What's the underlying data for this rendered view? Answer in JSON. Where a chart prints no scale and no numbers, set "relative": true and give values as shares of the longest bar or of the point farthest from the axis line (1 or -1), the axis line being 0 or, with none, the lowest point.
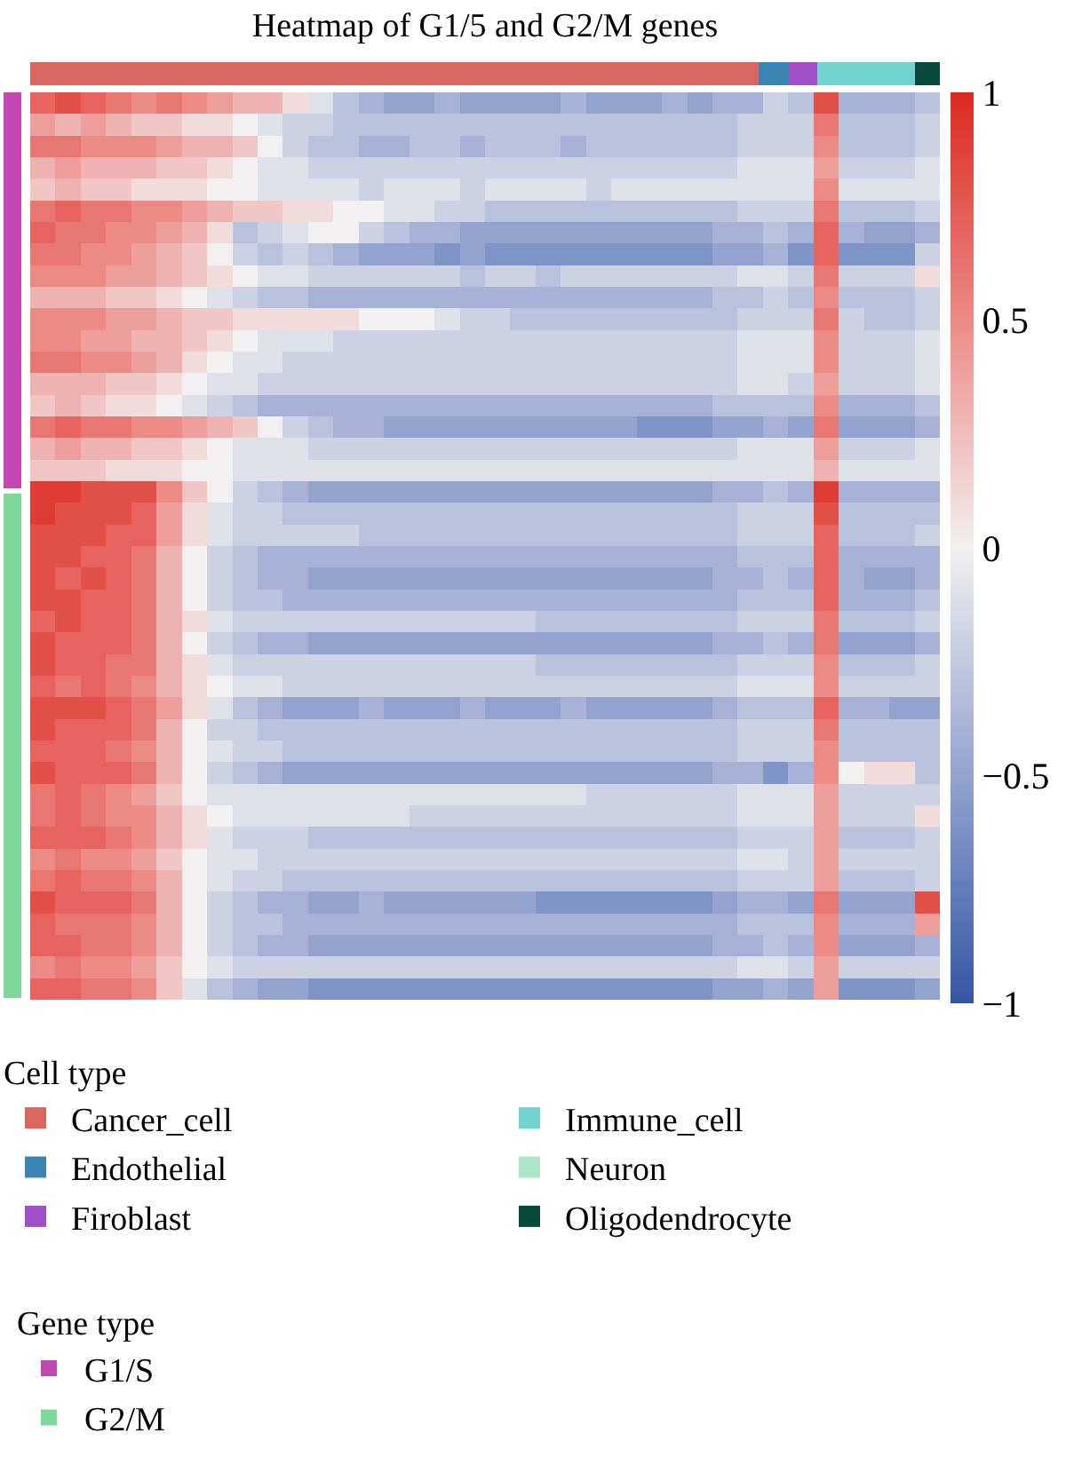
{
  "chart_data": [
    {
      "type": "bar",
      "title": "Heatmap of G1/5 and G2/M genes",
      "orientation": "horizontal",
      "stacked": true,
      "relative": true,
      "categories": [
        null
      ],
      "legend_title": "Cell type",
      "legend": "bottom left",
      "series": [
        {
          "name": "Cancer_cell",
          "color": "#d9675f",
          "values": [
            0.8
          ]
        },
        {
          "name": "Endothelial",
          "color": "#3a85b3",
          "values": [
            0.033
          ]
        },
        {
          "name": "Firoblast",
          "color": "#a050c6",
          "values": [
            0.033
          ]
        },
        {
          "name": "Immune_cell",
          "color": "#72d2cf",
          "values": [
            0.107
          ]
        },
        {
          "name": "Neuron",
          "color": "#aae5c6",
          "values": [
            null
          ]
        },
        {
          "name": "Oligodendrocyte",
          "color": "#07493a",
          "values": [
            0.027
          ]
        }
      ]
    },
    {
      "type": "bar",
      "stacked": true,
      "relative": true,
      "categories": [
        null
      ],
      "legend_title": "Gene type",
      "legend": "bottom right",
      "series": [
        {
          "name": "G2/M",
          "color": "#7dd89a",
          "values": [
            0.56
          ]
        },
        {
          "name": "G1/S",
          "color": "#c547b3",
          "values": [
            0.44
          ]
        }
      ]
    },
    {
      "type": "heatmap",
      "categories": [
        null,
        null,
        null,
        null,
        null,
        null,
        null,
        null,
        null,
        null,
        null,
        null,
        null,
        null,
        null,
        null,
        null,
        null,
        null,
        null,
        null,
        null,
        null,
        null,
        null,
        null,
        null,
        null,
        null,
        null,
        null,
        null,
        null,
        null,
        null,
        null
      ],
      "y_categories": [
        null,
        null,
        null,
        null,
        null,
        null,
        null,
        null,
        null,
        null,
        null,
        null,
        null,
        null,
        null,
        null,
        null,
        null,
        null,
        null,
        null,
        null,
        null,
        null,
        null,
        null,
        null,
        null,
        null,
        null,
        null,
        null,
        null,
        null,
        null,
        null,
        null,
        null,
        null,
        null,
        null,
        null
      ],
      "clim": [
        -1,
        1
      ],
      "cticks": [
        {
          "value": -1,
          "label": "−1"
        },
        {
          "value": -0.5,
          "label": "−0.5"
        },
        0,
        0.5,
        1
      ],
      "cells": [
        [
          0.7,
          0.8,
          0.7,
          0.6,
          0.5,
          0.6,
          0.5,
          0.4,
          0.3,
          0.3,
          0.1,
          -0.1,
          -0.3,
          -0.4,
          -0.5,
          -0.5,
          -0.4,
          -0.5,
          -0.5,
          -0.5,
          -0.5,
          -0.4,
          -0.5,
          -0.5,
          -0.5,
          -0.4,
          -0.5,
          -0.4,
          -0.4,
          -0.2,
          -0.3,
          0.8,
          -0.4,
          -0.4,
          -0.4,
          -0.3
        ],
        [
          0.4,
          0.3,
          0.4,
          0.3,
          0.2,
          0.2,
          0.1,
          0.1,
          0.0,
          -0.1,
          -0.2,
          -0.2,
          -0.3,
          -0.3,
          -0.3,
          -0.3,
          -0.3,
          -0.3,
          -0.3,
          -0.3,
          -0.3,
          -0.3,
          -0.3,
          -0.3,
          -0.3,
          -0.3,
          -0.3,
          -0.3,
          -0.2,
          -0.2,
          -0.2,
          0.6,
          -0.3,
          -0.3,
          -0.3,
          -0.2
        ],
        [
          0.6,
          0.6,
          0.5,
          0.5,
          0.5,
          0.4,
          0.3,
          0.3,
          0.2,
          0.0,
          -0.2,
          -0.3,
          -0.3,
          -0.4,
          -0.4,
          -0.3,
          -0.3,
          -0.4,
          -0.3,
          -0.3,
          -0.3,
          -0.4,
          -0.3,
          -0.3,
          -0.3,
          -0.3,
          -0.3,
          -0.3,
          -0.2,
          -0.2,
          -0.2,
          0.5,
          -0.3,
          -0.3,
          -0.3,
          -0.2
        ],
        [
          0.3,
          0.4,
          0.3,
          0.3,
          0.3,
          0.2,
          0.2,
          0.1,
          0.0,
          -0.1,
          -0.1,
          -0.2,
          -0.2,
          -0.2,
          -0.2,
          -0.2,
          -0.2,
          -0.2,
          -0.2,
          -0.2,
          -0.2,
          -0.2,
          -0.2,
          -0.2,
          -0.2,
          -0.2,
          -0.2,
          -0.2,
          -0.1,
          -0.1,
          -0.1,
          0.4,
          -0.2,
          -0.2,
          -0.2,
          -0.1
        ],
        [
          0.2,
          0.3,
          0.2,
          0.2,
          0.1,
          0.1,
          0.1,
          0.0,
          0.0,
          -0.1,
          -0.1,
          -0.1,
          -0.1,
          -0.2,
          -0.1,
          -0.1,
          -0.1,
          -0.2,
          -0.1,
          -0.1,
          -0.1,
          -0.1,
          -0.2,
          -0.1,
          -0.1,
          -0.1,
          -0.1,
          -0.1,
          -0.1,
          -0.1,
          -0.1,
          0.5,
          -0.1,
          -0.1,
          -0.1,
          -0.1
        ],
        [
          0.6,
          0.7,
          0.6,
          0.6,
          0.5,
          0.5,
          0.4,
          0.3,
          0.2,
          0.2,
          0.1,
          0.1,
          0.0,
          0.0,
          -0.1,
          -0.1,
          -0.2,
          -0.2,
          -0.3,
          -0.3,
          -0.3,
          -0.3,
          -0.3,
          -0.3,
          -0.3,
          -0.3,
          -0.3,
          -0.3,
          -0.2,
          -0.2,
          -0.2,
          0.6,
          -0.3,
          -0.3,
          -0.3,
          -0.2
        ],
        [
          0.7,
          0.6,
          0.6,
          0.5,
          0.5,
          0.4,
          0.3,
          0.1,
          -0.3,
          -0.2,
          -0.1,
          0.0,
          0.0,
          -0.2,
          -0.3,
          -0.4,
          -0.4,
          -0.5,
          -0.5,
          -0.5,
          -0.5,
          -0.5,
          -0.5,
          -0.5,
          -0.5,
          -0.5,
          -0.5,
          -0.4,
          -0.4,
          -0.3,
          -0.4,
          0.7,
          -0.4,
          -0.5,
          -0.5,
          -0.4
        ],
        [
          0.6,
          0.6,
          0.5,
          0.5,
          0.4,
          0.3,
          0.2,
          0.0,
          -0.2,
          -0.3,
          -0.2,
          -0.3,
          -0.4,
          -0.5,
          -0.5,
          -0.5,
          -0.6,
          -0.5,
          -0.6,
          -0.6,
          -0.6,
          -0.6,
          -0.6,
          -0.6,
          -0.6,
          -0.6,
          -0.6,
          -0.5,
          -0.5,
          -0.4,
          -0.6,
          0.7,
          -0.6,
          -0.6,
          -0.6,
          -0.2
        ],
        [
          0.5,
          0.5,
          0.5,
          0.4,
          0.4,
          0.3,
          0.2,
          0.1,
          0.0,
          -0.1,
          -0.1,
          -0.2,
          -0.2,
          -0.2,
          -0.2,
          -0.2,
          -0.2,
          -0.3,
          -0.2,
          -0.2,
          -0.3,
          -0.2,
          -0.2,
          -0.2,
          -0.2,
          -0.2,
          -0.2,
          -0.2,
          -0.1,
          -0.1,
          -0.2,
          0.6,
          -0.2,
          -0.2,
          -0.2,
          0.1
        ],
        [
          0.3,
          0.3,
          0.3,
          0.2,
          0.2,
          0.1,
          0.0,
          -0.1,
          -0.2,
          -0.3,
          -0.3,
          -0.4,
          -0.4,
          -0.4,
          -0.4,
          -0.4,
          -0.4,
          -0.4,
          -0.4,
          -0.4,
          -0.4,
          -0.4,
          -0.4,
          -0.4,
          -0.4,
          -0.4,
          -0.4,
          -0.3,
          -0.3,
          -0.2,
          -0.3,
          0.5,
          -0.3,
          -0.3,
          -0.3,
          -0.2
        ],
        [
          0.5,
          0.5,
          0.5,
          0.4,
          0.4,
          0.3,
          0.2,
          0.2,
          0.1,
          0.1,
          0.1,
          0.1,
          0.1,
          0.0,
          0.0,
          0.0,
          -0.1,
          -0.2,
          -0.2,
          -0.3,
          -0.3,
          -0.3,
          -0.3,
          -0.3,
          -0.3,
          -0.3,
          -0.3,
          -0.3,
          -0.2,
          -0.2,
          -0.2,
          0.6,
          -0.2,
          -0.3,
          -0.3,
          -0.2
        ],
        [
          0.5,
          0.5,
          0.4,
          0.4,
          0.3,
          0.3,
          0.2,
          0.1,
          0.0,
          -0.1,
          -0.1,
          -0.1,
          -0.2,
          -0.2,
          -0.2,
          -0.2,
          -0.2,
          -0.2,
          -0.2,
          -0.2,
          -0.2,
          -0.2,
          -0.2,
          -0.2,
          -0.2,
          -0.2,
          -0.2,
          -0.2,
          -0.1,
          -0.1,
          -0.1,
          0.5,
          -0.2,
          -0.2,
          -0.2,
          -0.1
        ],
        [
          0.6,
          0.6,
          0.5,
          0.5,
          0.4,
          0.3,
          0.1,
          0.0,
          -0.1,
          -0.1,
          -0.2,
          -0.2,
          -0.2,
          -0.2,
          -0.2,
          -0.2,
          -0.2,
          -0.2,
          -0.2,
          -0.2,
          -0.2,
          -0.2,
          -0.2,
          -0.2,
          -0.2,
          -0.2,
          -0.2,
          -0.2,
          -0.1,
          -0.1,
          -0.1,
          0.5,
          -0.2,
          -0.2,
          -0.2,
          -0.1
        ],
        [
          0.3,
          0.3,
          0.3,
          0.2,
          0.2,
          0.1,
          0.0,
          -0.1,
          -0.1,
          -0.2,
          -0.2,
          -0.2,
          -0.2,
          -0.2,
          -0.2,
          -0.2,
          -0.2,
          -0.2,
          -0.2,
          -0.2,
          -0.2,
          -0.2,
          -0.2,
          -0.2,
          -0.2,
          -0.2,
          -0.2,
          -0.2,
          -0.1,
          -0.1,
          -0.2,
          0.4,
          -0.2,
          -0.2,
          -0.2,
          -0.1
        ],
        [
          0.2,
          0.3,
          0.2,
          0.1,
          0.1,
          0.0,
          -0.1,
          -0.2,
          -0.3,
          -0.4,
          -0.4,
          -0.4,
          -0.4,
          -0.4,
          -0.4,
          -0.4,
          -0.4,
          -0.4,
          -0.4,
          -0.4,
          -0.4,
          -0.4,
          -0.4,
          -0.4,
          -0.4,
          -0.4,
          -0.4,
          -0.3,
          -0.3,
          -0.3,
          -0.3,
          0.5,
          -0.4,
          -0.4,
          -0.4,
          -0.3
        ],
        [
          0.6,
          0.7,
          0.6,
          0.6,
          0.5,
          0.5,
          0.4,
          0.3,
          0.2,
          0.0,
          -0.2,
          -0.3,
          -0.4,
          -0.4,
          -0.5,
          -0.5,
          -0.5,
          -0.5,
          -0.5,
          -0.5,
          -0.5,
          -0.5,
          -0.5,
          -0.5,
          -0.6,
          -0.6,
          -0.6,
          -0.5,
          -0.5,
          -0.4,
          -0.5,
          0.6,
          -0.5,
          -0.5,
          -0.5,
          -0.4
        ],
        [
          0.3,
          0.4,
          0.3,
          0.3,
          0.2,
          0.2,
          0.1,
          0.0,
          -0.1,
          -0.1,
          -0.1,
          -0.2,
          -0.2,
          -0.2,
          -0.2,
          -0.2,
          -0.2,
          -0.2,
          -0.2,
          -0.2,
          -0.2,
          -0.2,
          -0.2,
          -0.2,
          -0.2,
          -0.2,
          -0.2,
          -0.2,
          -0.1,
          -0.1,
          -0.1,
          0.4,
          -0.2,
          -0.2,
          -0.2,
          -0.1
        ],
        [
          0.2,
          0.2,
          0.2,
          0.1,
          0.1,
          0.1,
          0.0,
          0.0,
          -0.1,
          -0.1,
          -0.1,
          -0.1,
          -0.1,
          -0.1,
          -0.1,
          -0.1,
          -0.1,
          -0.1,
          -0.1,
          -0.1,
          -0.1,
          -0.1,
          -0.1,
          -0.1,
          -0.1,
          -0.1,
          -0.1,
          -0.1,
          -0.1,
          -0.1,
          -0.1,
          0.3,
          -0.1,
          -0.1,
          -0.1,
          -0.1
        ],
        [
          0.9,
          0.9,
          0.8,
          0.8,
          0.8,
          0.5,
          0.2,
          0.0,
          -0.2,
          -0.3,
          -0.4,
          -0.5,
          -0.5,
          -0.5,
          -0.5,
          -0.5,
          -0.5,
          -0.5,
          -0.5,
          -0.5,
          -0.5,
          -0.5,
          -0.5,
          -0.5,
          -0.5,
          -0.5,
          -0.5,
          -0.4,
          -0.4,
          -0.3,
          -0.4,
          0.9,
          -0.4,
          -0.4,
          -0.4,
          -0.4
        ],
        [
          0.9,
          0.8,
          0.8,
          0.8,
          0.7,
          0.4,
          0.1,
          -0.1,
          -0.2,
          -0.2,
          -0.3,
          -0.3,
          -0.3,
          -0.3,
          -0.3,
          -0.3,
          -0.3,
          -0.3,
          -0.3,
          -0.3,
          -0.3,
          -0.3,
          -0.3,
          -0.3,
          -0.3,
          -0.3,
          -0.3,
          -0.3,
          -0.2,
          -0.2,
          -0.2,
          0.8,
          -0.3,
          -0.3,
          -0.3,
          -0.3
        ],
        [
          0.8,
          0.8,
          0.8,
          0.7,
          0.7,
          0.4,
          0.1,
          -0.1,
          -0.2,
          -0.2,
          -0.2,
          -0.2,
          -0.2,
          -0.3,
          -0.3,
          -0.3,
          -0.3,
          -0.3,
          -0.3,
          -0.3,
          -0.3,
          -0.3,
          -0.3,
          -0.3,
          -0.3,
          -0.3,
          -0.3,
          -0.3,
          -0.2,
          -0.2,
          -0.2,
          0.7,
          -0.3,
          -0.3,
          -0.3,
          -0.2
        ],
        [
          0.8,
          0.8,
          0.7,
          0.7,
          0.6,
          0.3,
          0.0,
          -0.2,
          -0.3,
          -0.4,
          -0.4,
          -0.4,
          -0.4,
          -0.4,
          -0.4,
          -0.4,
          -0.4,
          -0.4,
          -0.4,
          -0.4,
          -0.4,
          -0.4,
          -0.4,
          -0.4,
          -0.4,
          -0.4,
          -0.4,
          -0.4,
          -0.3,
          -0.3,
          -0.3,
          0.7,
          -0.4,
          -0.4,
          -0.4,
          -0.4
        ],
        [
          0.8,
          0.7,
          0.8,
          0.7,
          0.6,
          0.3,
          0.0,
          -0.2,
          -0.3,
          -0.4,
          -0.4,
          -0.5,
          -0.5,
          -0.5,
          -0.5,
          -0.5,
          -0.5,
          -0.5,
          -0.5,
          -0.5,
          -0.5,
          -0.5,
          -0.5,
          -0.5,
          -0.5,
          -0.5,
          -0.5,
          -0.4,
          -0.4,
          -0.3,
          -0.4,
          0.7,
          -0.4,
          -0.5,
          -0.5,
          -0.4
        ],
        [
          0.8,
          0.8,
          0.7,
          0.7,
          0.6,
          0.3,
          0.0,
          -0.2,
          -0.3,
          -0.3,
          -0.4,
          -0.4,
          -0.4,
          -0.4,
          -0.4,
          -0.4,
          -0.4,
          -0.4,
          -0.4,
          -0.4,
          -0.4,
          -0.4,
          -0.4,
          -0.4,
          -0.4,
          -0.4,
          -0.4,
          -0.4,
          -0.3,
          -0.3,
          -0.3,
          0.7,
          -0.4,
          -0.4,
          -0.4,
          -0.3
        ],
        [
          0.7,
          0.8,
          0.7,
          0.7,
          0.6,
          0.3,
          0.1,
          -0.1,
          -0.2,
          -0.2,
          -0.2,
          -0.2,
          -0.2,
          -0.2,
          -0.2,
          -0.2,
          -0.2,
          -0.2,
          -0.2,
          -0.2,
          -0.3,
          -0.3,
          -0.3,
          -0.3,
          -0.3,
          -0.3,
          -0.3,
          -0.3,
          -0.2,
          -0.2,
          -0.2,
          0.6,
          -0.3,
          -0.3,
          -0.3,
          -0.2
        ],
        [
          0.8,
          0.7,
          0.7,
          0.7,
          0.6,
          0.3,
          0.0,
          -0.2,
          -0.3,
          -0.4,
          -0.4,
          -0.5,
          -0.5,
          -0.5,
          -0.5,
          -0.5,
          -0.5,
          -0.5,
          -0.5,
          -0.5,
          -0.5,
          -0.5,
          -0.5,
          -0.5,
          -0.5,
          -0.5,
          -0.5,
          -0.4,
          -0.4,
          -0.3,
          -0.4,
          0.6,
          -0.5,
          -0.5,
          -0.5,
          -0.4
        ],
        [
          0.8,
          0.7,
          0.7,
          0.6,
          0.6,
          0.3,
          0.1,
          -0.1,
          -0.2,
          -0.2,
          -0.2,
          -0.2,
          -0.2,
          -0.2,
          -0.2,
          -0.2,
          -0.2,
          -0.2,
          -0.2,
          -0.2,
          -0.3,
          -0.3,
          -0.3,
          -0.3,
          -0.3,
          -0.3,
          -0.3,
          -0.3,
          -0.2,
          -0.2,
          -0.2,
          0.5,
          -0.3,
          -0.3,
          -0.3,
          -0.2
        ],
        [
          0.7,
          0.6,
          0.7,
          0.6,
          0.5,
          0.3,
          0.1,
          0.0,
          -0.1,
          -0.1,
          -0.2,
          -0.2,
          -0.2,
          -0.2,
          -0.2,
          -0.2,
          -0.2,
          -0.2,
          -0.2,
          -0.2,
          -0.2,
          -0.2,
          -0.2,
          -0.2,
          -0.2,
          -0.2,
          -0.2,
          -0.2,
          -0.1,
          -0.1,
          -0.1,
          0.5,
          -0.2,
          -0.2,
          -0.2,
          -0.2
        ],
        [
          0.8,
          0.8,
          0.8,
          0.7,
          0.6,
          0.4,
          0.1,
          -0.1,
          -0.3,
          -0.4,
          -0.5,
          -0.5,
          -0.5,
          -0.4,
          -0.5,
          -0.5,
          -0.5,
          -0.4,
          -0.5,
          -0.5,
          -0.5,
          -0.4,
          -0.5,
          -0.5,
          -0.5,
          -0.5,
          -0.5,
          -0.4,
          -0.3,
          -0.3,
          -0.3,
          0.7,
          -0.4,
          -0.4,
          -0.5,
          -0.5
        ],
        [
          0.8,
          0.7,
          0.7,
          0.7,
          0.6,
          0.3,
          0.0,
          -0.2,
          -0.2,
          -0.3,
          -0.3,
          -0.3,
          -0.3,
          -0.3,
          -0.3,
          -0.3,
          -0.3,
          -0.3,
          -0.3,
          -0.3,
          -0.3,
          -0.3,
          -0.3,
          -0.3,
          -0.3,
          -0.3,
          -0.3,
          -0.3,
          -0.2,
          -0.2,
          -0.2,
          0.6,
          -0.3,
          -0.3,
          -0.3,
          -0.3
        ],
        [
          0.7,
          0.7,
          0.7,
          0.6,
          0.5,
          0.3,
          0.0,
          -0.1,
          -0.2,
          -0.2,
          -0.3,
          -0.3,
          -0.3,
          -0.3,
          -0.3,
          -0.3,
          -0.3,
          -0.3,
          -0.3,
          -0.3,
          -0.3,
          -0.3,
          -0.3,
          -0.3,
          -0.3,
          -0.3,
          -0.3,
          -0.3,
          -0.2,
          -0.2,
          -0.2,
          0.5,
          -0.3,
          -0.3,
          -0.3,
          -0.3
        ],
        [
          0.8,
          0.7,
          0.7,
          0.7,
          0.6,
          0.3,
          0.0,
          -0.2,
          -0.3,
          -0.4,
          -0.5,
          -0.5,
          -0.5,
          -0.5,
          -0.5,
          -0.5,
          -0.5,
          -0.5,
          -0.5,
          -0.5,
          -0.5,
          -0.5,
          -0.5,
          -0.5,
          -0.5,
          -0.5,
          -0.5,
          -0.4,
          -0.4,
          -0.6,
          -0.4,
          0.5,
          0.0,
          0.1,
          0.1,
          -0.3
        ],
        [
          0.6,
          0.7,
          0.6,
          0.5,
          0.4,
          0.2,
          0.0,
          -0.1,
          -0.1,
          -0.1,
          -0.1,
          -0.1,
          -0.1,
          -0.1,
          -0.1,
          -0.1,
          -0.1,
          -0.1,
          -0.1,
          -0.1,
          -0.1,
          -0.1,
          -0.2,
          -0.2,
          -0.2,
          -0.2,
          -0.2,
          -0.2,
          -0.1,
          -0.1,
          -0.1,
          0.4,
          -0.2,
          -0.2,
          -0.2,
          -0.2
        ],
        [
          0.6,
          0.7,
          0.6,
          0.5,
          0.5,
          0.3,
          0.1,
          0.0,
          -0.1,
          -0.1,
          -0.1,
          -0.1,
          -0.1,
          -0.1,
          -0.1,
          -0.2,
          -0.2,
          -0.2,
          -0.2,
          -0.2,
          -0.2,
          -0.2,
          -0.2,
          -0.2,
          -0.2,
          -0.2,
          -0.2,
          -0.2,
          -0.1,
          -0.1,
          -0.1,
          0.4,
          -0.2,
          -0.2,
          -0.2,
          0.1
        ],
        [
          0.7,
          0.7,
          0.7,
          0.6,
          0.5,
          0.3,
          0.1,
          -0.1,
          -0.2,
          -0.2,
          -0.2,
          -0.3,
          -0.3,
          -0.3,
          -0.3,
          -0.3,
          -0.3,
          -0.3,
          -0.3,
          -0.3,
          -0.3,
          -0.3,
          -0.3,
          -0.3,
          -0.3,
          -0.3,
          -0.3,
          -0.3,
          -0.2,
          -0.2,
          -0.2,
          0.4,
          -0.3,
          -0.3,
          -0.3,
          -0.2
        ],
        [
          0.5,
          0.6,
          0.5,
          0.5,
          0.4,
          0.2,
          0.0,
          -0.1,
          -0.1,
          -0.2,
          -0.2,
          -0.2,
          -0.2,
          -0.2,
          -0.2,
          -0.2,
          -0.2,
          -0.2,
          -0.2,
          -0.2,
          -0.2,
          -0.2,
          -0.2,
          -0.2,
          -0.2,
          -0.2,
          -0.2,
          -0.2,
          -0.1,
          -0.1,
          -0.2,
          0.4,
          -0.2,
          -0.2,
          -0.2,
          -0.2
        ],
        [
          0.6,
          0.7,
          0.6,
          0.6,
          0.5,
          0.3,
          0.0,
          -0.1,
          -0.2,
          -0.2,
          -0.3,
          -0.3,
          -0.3,
          -0.3,
          -0.3,
          -0.3,
          -0.3,
          -0.3,
          -0.3,
          -0.3,
          -0.3,
          -0.3,
          -0.3,
          -0.3,
          -0.3,
          -0.3,
          -0.3,
          -0.3,
          -0.2,
          -0.2,
          -0.2,
          0.4,
          -0.3,
          -0.3,
          -0.3,
          -0.2
        ],
        [
          0.8,
          0.7,
          0.7,
          0.7,
          0.6,
          0.3,
          0.0,
          -0.2,
          -0.3,
          -0.4,
          -0.4,
          -0.5,
          -0.5,
          -0.4,
          -0.5,
          -0.5,
          -0.5,
          -0.5,
          -0.5,
          -0.5,
          -0.6,
          -0.6,
          -0.6,
          -0.6,
          -0.6,
          -0.6,
          -0.6,
          -0.5,
          -0.4,
          -0.4,
          -0.5,
          0.6,
          -0.5,
          -0.5,
          -0.5,
          0.8
        ],
        [
          0.7,
          0.6,
          0.6,
          0.6,
          0.5,
          0.3,
          0.0,
          -0.2,
          -0.3,
          -0.3,
          -0.4,
          -0.4,
          -0.4,
          -0.4,
          -0.4,
          -0.4,
          -0.4,
          -0.4,
          -0.4,
          -0.4,
          -0.4,
          -0.4,
          -0.4,
          -0.4,
          -0.4,
          -0.4,
          -0.4,
          -0.4,
          -0.3,
          -0.3,
          -0.3,
          0.5,
          -0.4,
          -0.4,
          -0.4,
          0.4
        ],
        [
          0.7,
          0.7,
          0.6,
          0.6,
          0.5,
          0.3,
          0.0,
          -0.2,
          -0.3,
          -0.4,
          -0.4,
          -0.5,
          -0.5,
          -0.5,
          -0.5,
          -0.5,
          -0.5,
          -0.5,
          -0.5,
          -0.5,
          -0.5,
          -0.5,
          -0.5,
          -0.5,
          -0.5,
          -0.5,
          -0.5,
          -0.4,
          -0.4,
          -0.3,
          -0.4,
          0.5,
          -0.5,
          -0.5,
          -0.5,
          -0.4
        ],
        [
          0.5,
          0.6,
          0.5,
          0.5,
          0.4,
          0.2,
          0.0,
          -0.1,
          -0.2,
          -0.2,
          -0.2,
          -0.2,
          -0.2,
          -0.2,
          -0.2,
          -0.2,
          -0.2,
          -0.2,
          -0.2,
          -0.2,
          -0.2,
          -0.2,
          -0.2,
          -0.2,
          -0.2,
          -0.2,
          -0.2,
          -0.2,
          -0.1,
          -0.1,
          -0.2,
          0.4,
          -0.2,
          -0.2,
          -0.2,
          -0.2
        ],
        [
          0.7,
          0.7,
          0.6,
          0.6,
          0.5,
          0.2,
          -0.1,
          -0.3,
          -0.4,
          -0.5,
          -0.5,
          -0.6,
          -0.6,
          -0.6,
          -0.6,
          -0.6,
          -0.6,
          -0.6,
          -0.6,
          -0.6,
          -0.6,
          -0.6,
          -0.6,
          -0.6,
          -0.6,
          -0.6,
          -0.6,
          -0.5,
          -0.5,
          -0.4,
          -0.5,
          0.4,
          -0.6,
          -0.6,
          -0.6,
          -0.5
        ]
      ]
    }
  ]
}
